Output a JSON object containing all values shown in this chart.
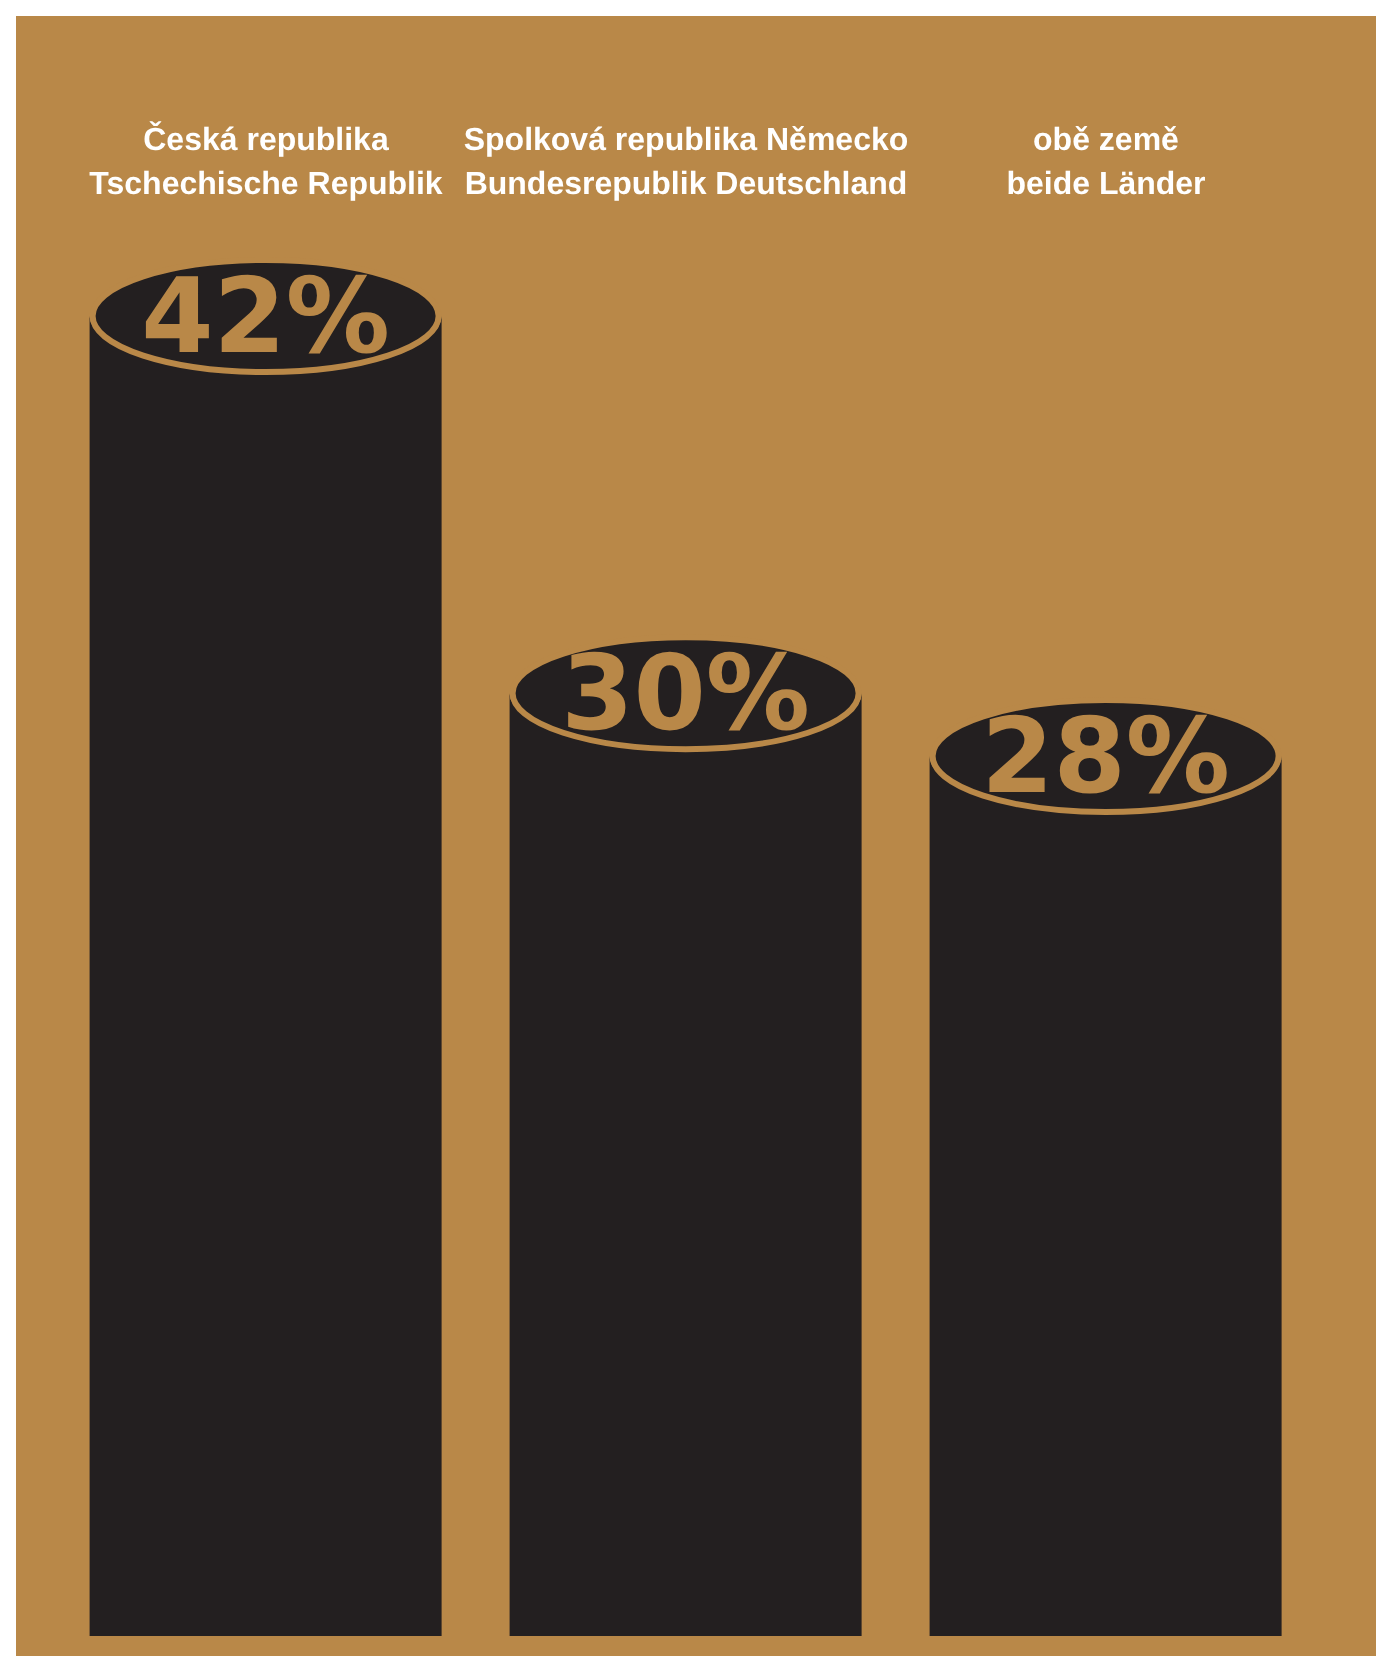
{
  "chart_data": {
    "type": "bar",
    "categories": [
      "Česká republika\nTschechische Republik",
      "Spolková republika Německo\nBundesrepublik Deutschland",
      "obě země\nbeide Länder"
    ],
    "values": [
      42,
      30,
      28
    ],
    "color": "#231f20",
    "value_labels": [
      "42%",
      "30%",
      "28%"
    ]
  }
}
